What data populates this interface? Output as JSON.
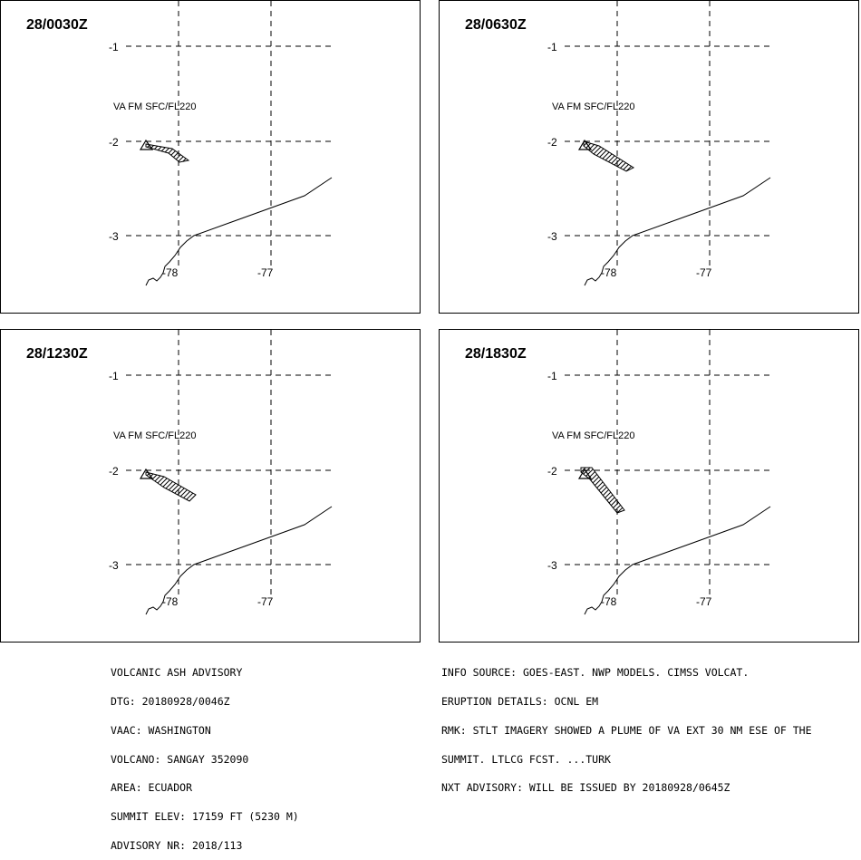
{
  "panels": [
    {
      "time": "28/0030Z",
      "va_label": "VA FM SFC/FL220",
      "plume": "p1"
    },
    {
      "time": "28/0630Z",
      "va_label": "VA FM SFC/FL220",
      "plume": "p2"
    },
    {
      "time": "28/1230Z",
      "va_label": "VA FM SFC/FL220",
      "plume": "p3"
    },
    {
      "time": "28/1830Z",
      "va_label": "VA FM SFC/FL220",
      "plume": "p4"
    }
  ],
  "grid": {
    "lat_labels": [
      "-1",
      "-2",
      "-3"
    ],
    "lon_labels": [
      "-78",
      "-77"
    ]
  },
  "advisory_left": [
    "VOLCANIC ASH ADVISORY",
    "DTG: 20180928/0046Z",
    "VAAC: WASHINGTON",
    "VOLCANO: SANGAY 352090",
    "AREA: ECUADOR",
    "SUMMIT ELEV: 17159 FT (5230 M)",
    "ADVISORY NR: 2018/113"
  ],
  "advisory_right": [
    "INFO SOURCE: GOES-EAST. NWP MODELS. CIMSS VOLCAT.",
    "ERUPTION DETAILS: OCNL EM",
    "RMK: STLT IMAGERY SHOWED A PLUME OF VA EXT 30 NM ESE OF THE",
    "SUMMIT. LTLCG FCST. ...TURK",
    "NXT ADVISORY: WILL BE ISSUED BY 20180928/0645Z"
  ]
}
